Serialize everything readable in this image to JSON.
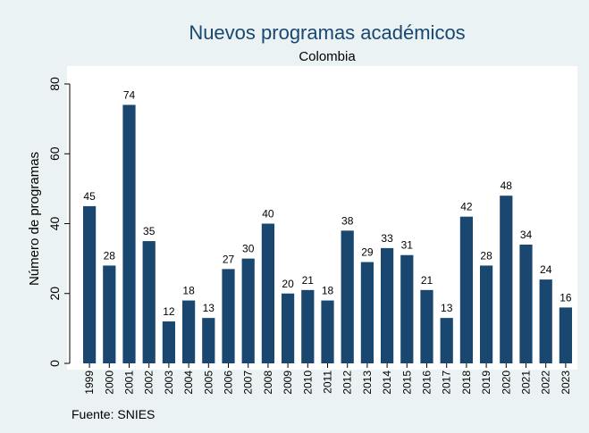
{
  "chart_data": {
    "type": "bar",
    "title": "Nuevos programas académicos",
    "subtitle": "Colombia",
    "y_label": "Número de programas",
    "note": "Fuente: SNIES",
    "categories": [
      "1999",
      "2000",
      "2001",
      "2002",
      "2003",
      "2004",
      "2005",
      "2006",
      "2007",
      "2008",
      "2009",
      "2010",
      "2011",
      "2012",
      "2013",
      "2014",
      "2015",
      "2016",
      "2017",
      "2018",
      "2019",
      "2020",
      "2021",
      "2022",
      "2023"
    ],
    "values": [
      45,
      28,
      74,
      35,
      12,
      18,
      13,
      27,
      30,
      40,
      20,
      21,
      18,
      38,
      29,
      33,
      31,
      21,
      13,
      42,
      28,
      48,
      34,
      24,
      16
    ],
    "color": "#1a476f",
    "ylim": [
      0,
      80
    ],
    "yticks": [
      0,
      20,
      40,
      60,
      80
    ],
    "grid": false
  }
}
